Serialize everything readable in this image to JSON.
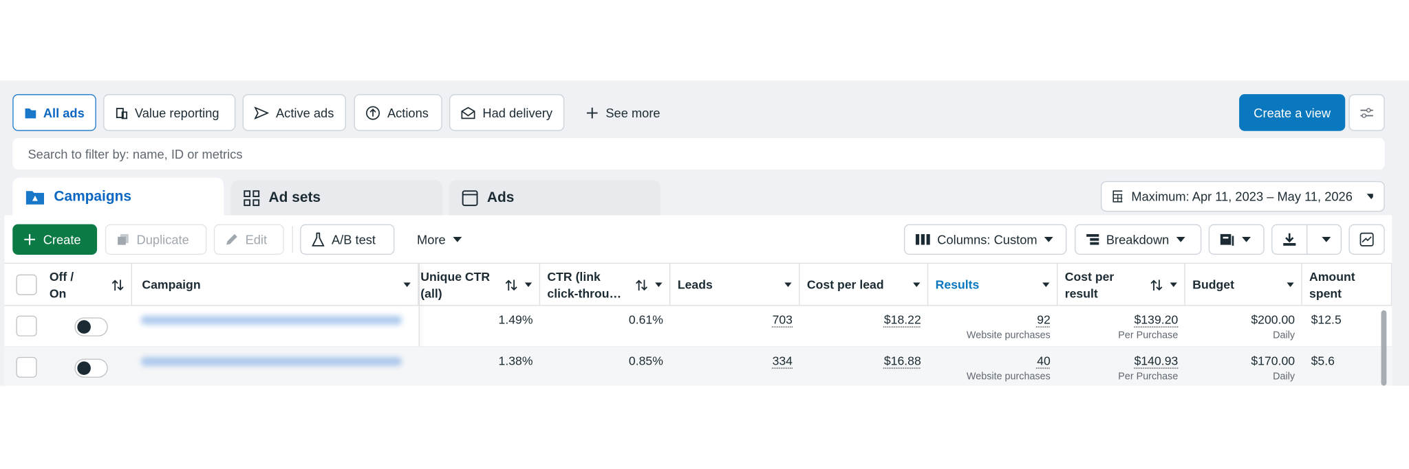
{
  "view_tabs": [
    "All ads",
    "Value reporting",
    "Active ads",
    "Actions",
    "Had delivery",
    "See more"
  ],
  "create_view": "Create a view",
  "search_placeholder": "Search to filter by: name, ID or metrics",
  "level_tabs": [
    "Campaigns",
    "Ad sets",
    "Ads"
  ],
  "date_range": "Maximum: Apr 11, 2023 – May 11, 2026",
  "toolbar": {
    "create": "Create",
    "duplicate": "Duplicate",
    "edit": "Edit",
    "ab_test": "A/B test",
    "more": "More",
    "columns": "Columns: Custom",
    "breakdown": "Breakdown"
  },
  "table": {
    "columns": [
      "Off / On",
      "Campaign",
      "Unique CTR (all)",
      "CTR (link click-throu…",
      "Leads",
      "Cost per lead",
      "Results",
      "Cost per result",
      "Budget",
      "Amount spent"
    ],
    "rows": [
      {
        "unique_ctr": "1.49%",
        "ctr": "0.61%",
        "leads": "703",
        "cost_per_lead": "$18.22",
        "results": "92",
        "results_sub": "Website purchases",
        "cost_per_result": "$139.20",
        "cost_per_result_sub": "Per Purchase",
        "budget": "$200.00",
        "budget_sub": "Daily",
        "amount_spent": "$12.5"
      },
      {
        "unique_ctr": "1.38%",
        "ctr": "0.85%",
        "leads": "334",
        "cost_per_lead": "$16.88",
        "results": "40",
        "results_sub": "Website purchases",
        "cost_per_result": "$140.93",
        "cost_per_result_sub": "Per Purchase",
        "budget": "$170.00",
        "budget_sub": "Daily",
        "amount_spent": "$5.6"
      }
    ]
  }
}
